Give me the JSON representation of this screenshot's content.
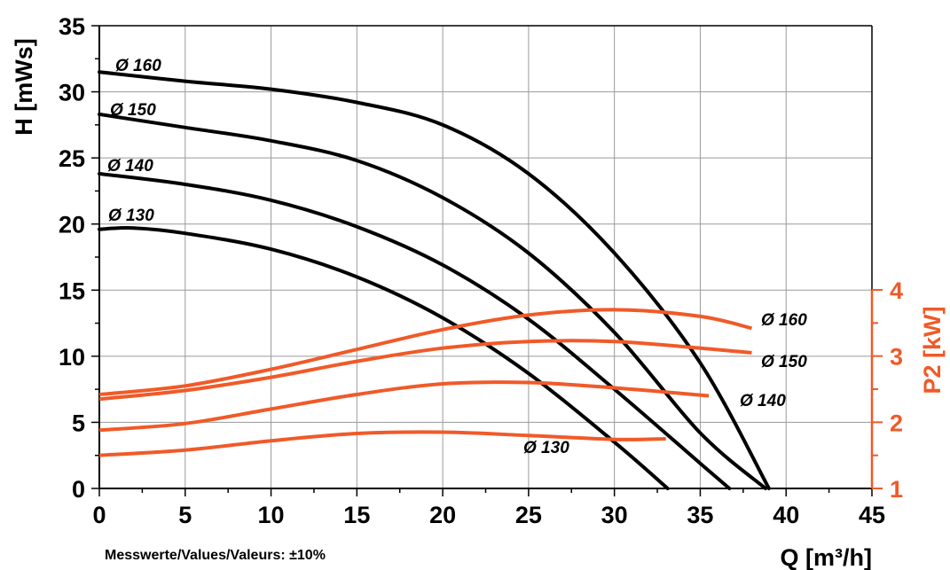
{
  "chart_data": {
    "type": "line",
    "colors": {
      "head": "#000000",
      "power": "#f05a28",
      "grid": "#9a9a9a"
    },
    "grid": true,
    "x_axis": {
      "label": "Q [m³/h]",
      "range": [
        0,
        45
      ],
      "ticks": [
        0,
        5,
        10,
        15,
        20,
        25,
        30,
        35,
        40,
        45
      ],
      "tick_labels": [
        "0",
        "5",
        "10",
        "15",
        "20",
        "25",
        "30",
        "35",
        "40",
        "45"
      ]
    },
    "y_axis_left": {
      "label": "H [mWs]",
      "range": [
        0,
        35
      ],
      "ticks": [
        0,
        5,
        10,
        15,
        20,
        25,
        30,
        35
      ],
      "tick_labels": [
        "0",
        "5",
        "10",
        "15",
        "20",
        "25",
        "30",
        "35"
      ]
    },
    "y_axis_right": {
      "label": "P2 [kW]",
      "range": [
        1,
        4
      ],
      "ticks": [
        1,
        2,
        3,
        4
      ],
      "tick_labels": [
        "1",
        "2",
        "3",
        "4"
      ]
    },
    "head_series": [
      {
        "name": "Ø 160",
        "x": [
          0,
          5,
          10,
          15,
          20,
          25,
          30,
          35,
          39
        ],
        "y": [
          31.5,
          30.8,
          30.2,
          29.2,
          27.5,
          23.8,
          17.8,
          9.5,
          0
        ]
      },
      {
        "name": "Ø 150",
        "x": [
          0,
          5,
          10,
          15,
          20,
          25,
          30,
          35,
          38.8
        ],
        "y": [
          28.3,
          27.3,
          26.3,
          24.8,
          22.0,
          17.8,
          11.8,
          4.2,
          0
        ]
      },
      {
        "name": "Ø 140",
        "x": [
          0,
          5,
          10,
          15,
          20,
          25,
          30,
          35,
          36.7
        ],
        "y": [
          23.8,
          23.0,
          21.8,
          19.8,
          16.9,
          12.8,
          7.5,
          1.9,
          0
        ]
      },
      {
        "name": "Ø 130",
        "x": [
          0,
          2,
          5,
          10,
          15,
          20,
          25,
          30,
          33.1
        ],
        "y": [
          19.6,
          19.7,
          19.3,
          18.1,
          16.0,
          12.9,
          8.7,
          3.5,
          0
        ]
      }
    ],
    "power_series": [
      {
        "name": "Ø 160",
        "x": [
          0,
          5,
          10,
          15,
          20,
          25,
          30,
          35,
          38
        ],
        "y": [
          2.42,
          2.55,
          2.8,
          3.1,
          3.4,
          3.62,
          3.7,
          3.6,
          3.42
        ]
      },
      {
        "name": "Ø 150",
        "x": [
          0,
          5,
          10,
          15,
          20,
          25,
          30,
          35,
          38
        ],
        "y": [
          2.35,
          2.48,
          2.68,
          2.92,
          3.12,
          3.22,
          3.22,
          3.12,
          3.05
        ]
      },
      {
        "name": "Ø 140",
        "x": [
          0,
          5,
          10,
          15,
          20,
          25,
          30,
          35.5
        ],
        "y": [
          1.88,
          1.98,
          2.2,
          2.42,
          2.58,
          2.6,
          2.52,
          2.4
        ]
      },
      {
        "name": "Ø 130",
        "x": [
          0,
          5,
          10,
          15,
          20,
          25,
          30,
          33
        ],
        "y": [
          1.5,
          1.58,
          1.72,
          1.83,
          1.85,
          1.8,
          1.74,
          1.75
        ]
      }
    ],
    "head_labels": [
      "Ø 160",
      "Ø 150",
      "Ø 140",
      "Ø 130"
    ],
    "power_labels": [
      "Ø 160",
      "Ø 150",
      "Ø 140",
      "Ø 130"
    ]
  },
  "note": "Messwerte/Values/Valeurs: ±10%"
}
